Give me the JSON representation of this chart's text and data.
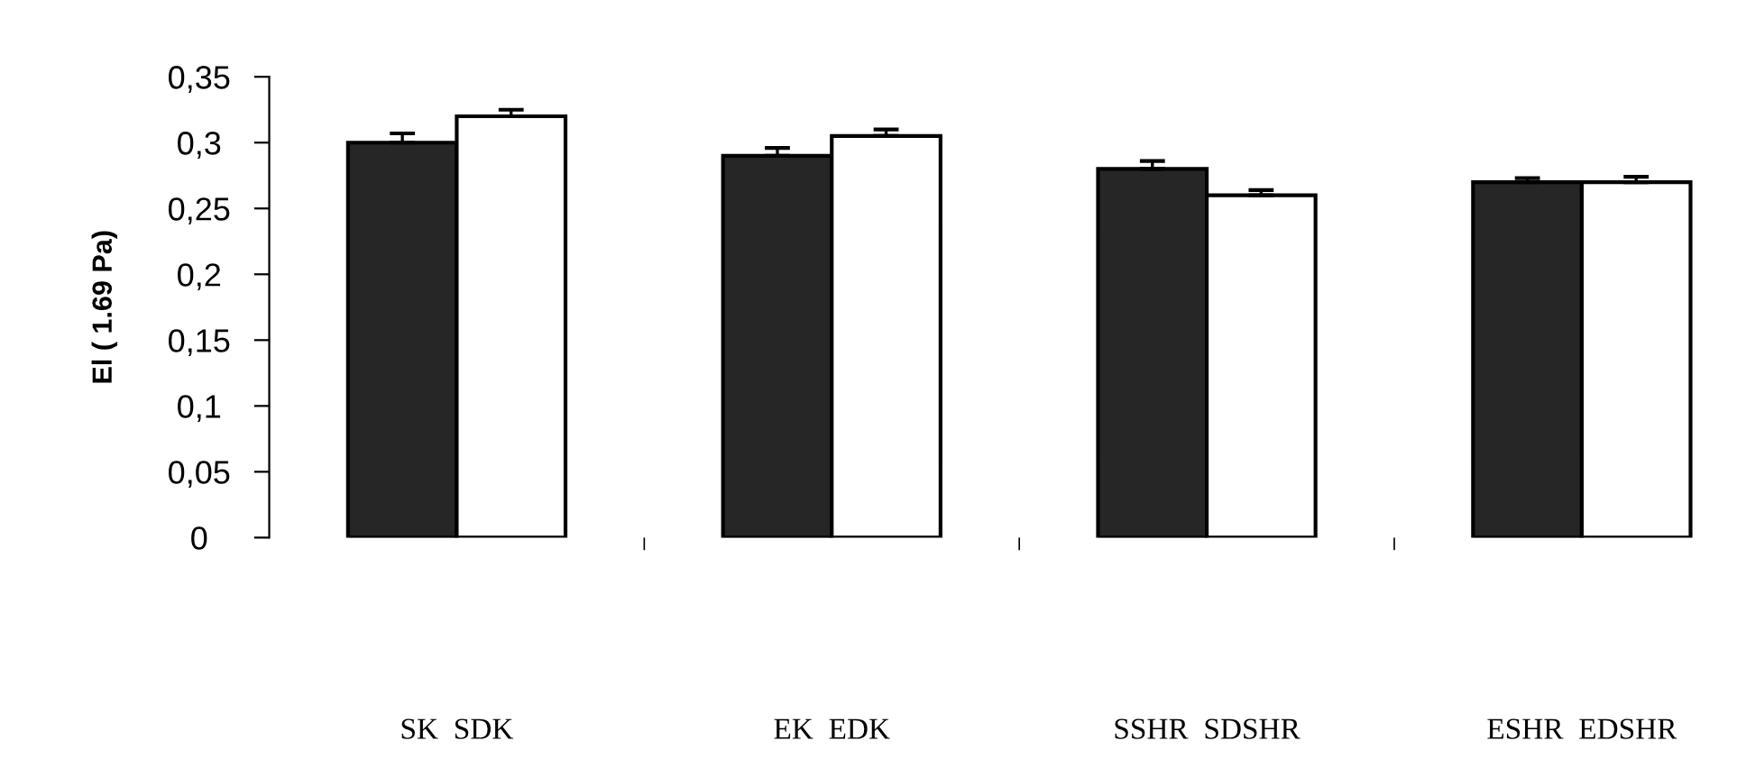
{
  "chart_data": {
    "type": "bar",
    "ylabel": "El ( 1.69 Pa)",
    "categories": [
      "SK  SDK",
      "EK  EDK",
      "SSHR  SDSHR",
      "ESHR  EDSHR"
    ],
    "series": [
      {
        "color": "#262626",
        "values": [
          0.3,
          0.29,
          0.28,
          0.27
        ],
        "errors": [
          0.007,
          0.006,
          0.006,
          0.003
        ]
      },
      {
        "color": "#ffffff",
        "values": [
          0.32,
          0.305,
          0.26,
          0.27
        ],
        "errors": [
          0.005,
          0.005,
          0.004,
          0.004
        ]
      }
    ],
    "ylim": [
      0,
      0.35
    ],
    "yticks": [
      {
        "value": 0,
        "label": "0"
      },
      {
        "value": 0.05,
        "label": "0,05"
      },
      {
        "value": 0.1,
        "label": "0,1"
      },
      {
        "value": 0.15,
        "label": "0,15"
      },
      {
        "value": 0.2,
        "label": "0,2"
      },
      {
        "value": 0.25,
        "label": "0,25"
      },
      {
        "value": 0.3,
        "label": "0,3"
      },
      {
        "value": 0.35,
        "label": "0,35"
      }
    ],
    "grid": false,
    "legend": false
  }
}
